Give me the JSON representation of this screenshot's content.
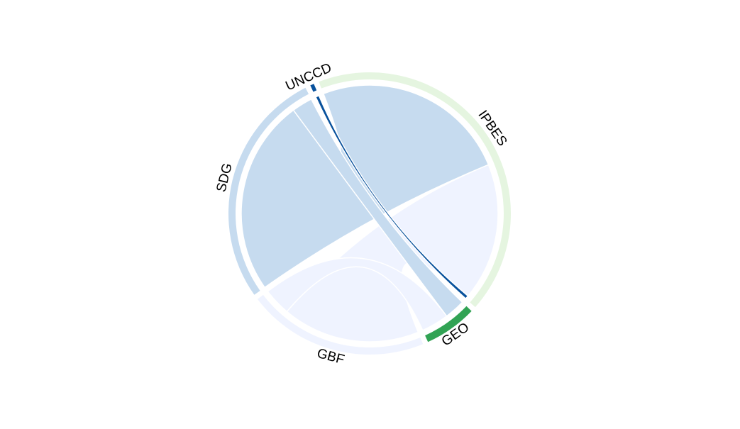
{
  "chart_data": {
    "type": "chord",
    "sectors": [
      {
        "name": "IPBES",
        "color": "#e5f5e0"
      },
      {
        "name": "GEO",
        "color": "#31a354"
      },
      {
        "name": "GBF",
        "color": "#eff3ff"
      },
      {
        "name": "SDG",
        "color": "#c6dbef"
      },
      {
        "name": "UNCCD",
        "color": "#08519c"
      }
    ],
    "links": [
      {
        "source": "IPBES",
        "target": "SDG",
        "value": 57,
        "color": "#c6dbef"
      },
      {
        "source": "IPBES",
        "target": "GBF",
        "value": 40,
        "color": "#eff3ff"
      },
      {
        "source": "IPBES",
        "target": "UNCCD",
        "value": 1,
        "color": "#08519c"
      },
      {
        "source": "GEO",
        "target": "SDG",
        "value": 6,
        "color": "#c6dbef"
      },
      {
        "source": "GEO",
        "target": "GBF",
        "value": 8,
        "color": "#eff3ff"
      }
    ]
  }
}
